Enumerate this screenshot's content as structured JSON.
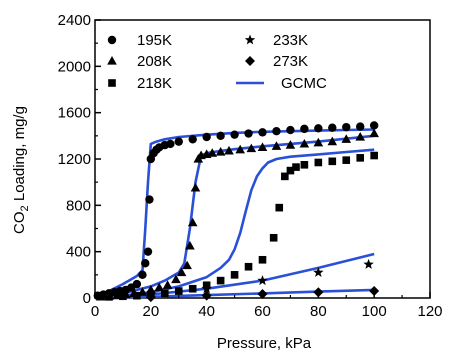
{
  "chart_data": {
    "type": "scatter",
    "xlabel": "Pressure, kPa",
    "ylabel_main": "CO",
    "ylabel_sub": "2",
    "ylabel_rest": " Loading, mg/g",
    "xlim": [
      0,
      120
    ],
    "ylim": [
      0,
      2400
    ],
    "xticks": [
      0,
      20,
      40,
      60,
      80,
      100,
      120
    ],
    "yticks": [
      0,
      400,
      800,
      1200,
      1600,
      2000,
      2400
    ],
    "grid": false,
    "legend_position": "top-left",
    "colors": {
      "markers": "#000000",
      "gcmc": "#2a50d8"
    },
    "series": [
      {
        "name": "195K",
        "marker": "circle",
        "x": [
          1,
          3,
          5,
          7,
          9,
          11,
          13,
          15,
          17,
          18,
          19,
          19.5,
          20,
          21,
          22,
          23,
          25,
          27,
          30,
          35,
          40,
          45,
          50,
          55,
          60,
          65,
          70,
          75,
          80,
          85,
          90,
          95,
          100
        ],
        "y": [
          20,
          30,
          40,
          50,
          60,
          70,
          90,
          120,
          200,
          300,
          400,
          850,
          1200,
          1250,
          1280,
          1300,
          1320,
          1330,
          1350,
          1370,
          1390,
          1400,
          1410,
          1420,
          1430,
          1440,
          1450,
          1460,
          1465,
          1470,
          1475,
          1480,
          1490
        ]
      },
      {
        "name": "208K",
        "marker": "triangle",
        "x": [
          2,
          5,
          8,
          11,
          14,
          17,
          20,
          23,
          26,
          29,
          31,
          33,
          34,
          35,
          36,
          37,
          38,
          40,
          42,
          45,
          48,
          52,
          56,
          60,
          65,
          70,
          75,
          80,
          85,
          90,
          95,
          100
        ],
        "y": [
          10,
          15,
          20,
          30,
          40,
          50,
          70,
          90,
          110,
          160,
          220,
          280,
          450,
          650,
          950,
          1200,
          1230,
          1240,
          1250,
          1260,
          1270,
          1280,
          1290,
          1300,
          1310,
          1320,
          1330,
          1340,
          1350,
          1370,
          1390,
          1420
        ]
      },
      {
        "name": "218K",
        "marker": "square",
        "x": [
          5,
          10,
          15,
          20,
          25,
          30,
          35,
          40,
          45,
          50,
          55,
          60,
          64,
          66,
          68,
          70,
          72,
          75,
          80,
          85,
          90,
          95,
          100
        ],
        "y": [
          10,
          15,
          20,
          30,
          40,
          60,
          80,
          110,
          150,
          200,
          270,
          330,
          520,
          780,
          1050,
          1100,
          1130,
          1150,
          1170,
          1180,
          1190,
          1210,
          1230
        ]
      },
      {
        "name": "233K",
        "marker": "star",
        "x": [
          20,
          40,
          60,
          80,
          98
        ],
        "y": [
          30,
          80,
          150,
          220,
          290
        ]
      },
      {
        "name": "273K",
        "marker": "diamond",
        "x": [
          20,
          40,
          60,
          80,
          100
        ],
        "y": [
          8,
          20,
          35,
          50,
          60
        ]
      },
      {
        "name": "GCMC",
        "marker": "line",
        "lines": [
          {
            "x": [
              0,
              5,
              10,
              15,
              17,
              18,
              19,
              20,
              22,
              25,
              30,
              40,
              50,
              60,
              70,
              80,
              90,
              100
            ],
            "y": [
              0,
              60,
              120,
              190,
              240,
              600,
              1000,
              1330,
              1350,
              1370,
              1390,
              1410,
              1425,
              1435,
              1440,
              1445,
              1450,
              1455
            ]
          },
          {
            "x": [
              0,
              10,
              20,
              25,
              30,
              32,
              34,
              36,
              38,
              40,
              45,
              50,
              60,
              70,
              80,
              90,
              100
            ],
            "y": [
              0,
              40,
              100,
              150,
              220,
              300,
              600,
              1000,
              1230,
              1250,
              1270,
              1285,
              1310,
              1330,
              1350,
              1375,
              1400
            ]
          },
          {
            "x": [
              0,
              10,
              20,
              30,
              40,
              45,
              48,
              50,
              52,
              54,
              56,
              58,
              60,
              62,
              65,
              70,
              80,
              90,
              100
            ],
            "y": [
              0,
              20,
              50,
              100,
              180,
              260,
              330,
              420,
              560,
              750,
              930,
              1050,
              1120,
              1170,
              1200,
              1220,
              1240,
              1260,
              1280
            ]
          },
          {
            "x": [
              0,
              20,
              40,
              60,
              80,
              100
            ],
            "y": [
              0,
              30,
              80,
              150,
              260,
              380
            ]
          },
          {
            "x": [
              0,
              20,
              40,
              60,
              80,
              100
            ],
            "y": [
              0,
              10,
              25,
              40,
              55,
              70
            ]
          }
        ]
      }
    ]
  }
}
